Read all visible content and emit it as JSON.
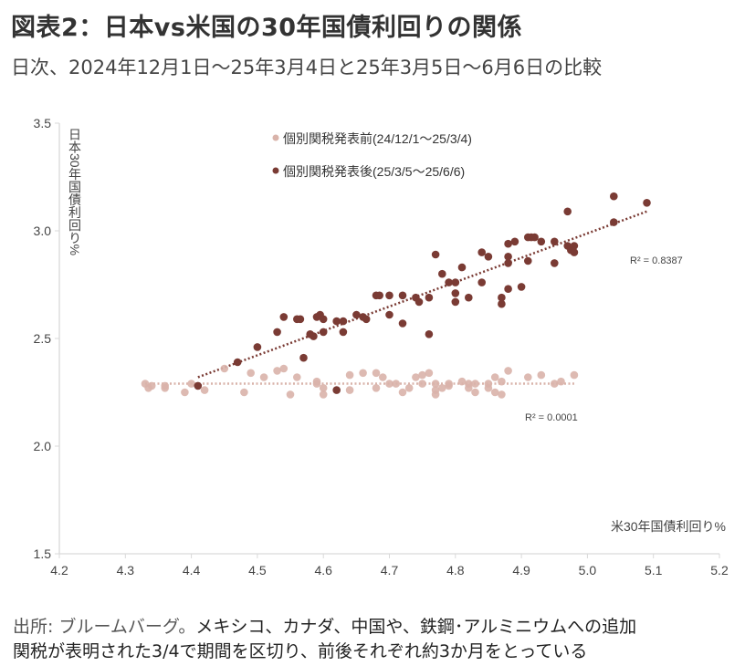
{
  "header": {
    "title": "図表2：日本vs米国の30年国債利回りの関係",
    "subtitle": "日次、2024年12月1日～25年3月4日と25年3月5日～6月6日の比較"
  },
  "footer": {
    "source_label": "出所: ブルームバーグ。",
    "line1_rest": "メキシコ、カナダ、中国や、鉄鋼･アルミニウムへの追加",
    "line2": "関税が表明された3/4で期間を区切り、前後それぞれ約3か月をとっている"
  },
  "chart_data": {
    "type": "scatter",
    "title": "図表2：日本vs米国の30年国債利回りの関係",
    "xlabel": "米30年国債利回り%",
    "ylabel": "日本30年国債利回り%",
    "xlim": [
      4.2,
      5.2
    ],
    "ylim": [
      1.5,
      3.5
    ],
    "xticks": [
      "4.2",
      "4.3",
      "4.4",
      "4.5",
      "4.6",
      "4.7",
      "4.8",
      "4.9",
      "5.0",
      "5.1",
      "5.2"
    ],
    "yticks": [
      "1.5",
      "2.0",
      "2.5",
      "3.0",
      "3.5"
    ],
    "grid": false,
    "legend_position": "top-center",
    "series": [
      {
        "name": "個別関税発表前(24/12/1～25/3/4)",
        "color": "#d9b3aa",
        "r_squared_label": "R² = 0.0001",
        "trendline": {
          "x": [
            4.33,
            4.98
          ],
          "y": [
            2.29,
            2.29
          ]
        },
        "points": [
          [
            4.33,
            2.29
          ],
          [
            4.335,
            2.27
          ],
          [
            4.34,
            2.28
          ],
          [
            4.36,
            2.28
          ],
          [
            4.36,
            2.27
          ],
          [
            4.39,
            2.25
          ],
          [
            4.4,
            2.29
          ],
          [
            4.42,
            2.26
          ],
          [
            4.45,
            2.36
          ],
          [
            4.48,
            2.25
          ],
          [
            4.49,
            2.34
          ],
          [
            4.51,
            2.32
          ],
          [
            4.53,
            2.35
          ],
          [
            4.54,
            2.36
          ],
          [
            4.55,
            2.24
          ],
          [
            4.56,
            2.32
          ],
          [
            4.59,
            2.3
          ],
          [
            4.59,
            2.29
          ],
          [
            4.6,
            2.27
          ],
          [
            4.6,
            2.24
          ],
          [
            4.64,
            2.33
          ],
          [
            4.64,
            2.26
          ],
          [
            4.66,
            2.34
          ],
          [
            4.68,
            2.34
          ],
          [
            4.68,
            2.27
          ],
          [
            4.69,
            2.32
          ],
          [
            4.7,
            2.29
          ],
          [
            4.71,
            2.29
          ],
          [
            4.72,
            2.25
          ],
          [
            4.73,
            2.27
          ],
          [
            4.74,
            2.32
          ],
          [
            4.75,
            2.33
          ],
          [
            4.75,
            2.29
          ],
          [
            4.76,
            2.34
          ],
          [
            4.77,
            2.29
          ],
          [
            4.77,
            2.26
          ],
          [
            4.77,
            2.24
          ],
          [
            4.78,
            2.27
          ],
          [
            4.79,
            2.28
          ],
          [
            4.79,
            2.29
          ],
          [
            4.81,
            2.3
          ],
          [
            4.82,
            2.27
          ],
          [
            4.82,
            2.29
          ],
          [
            4.83,
            2.25
          ],
          [
            4.83,
            2.29
          ],
          [
            4.85,
            2.29
          ],
          [
            4.86,
            2.32
          ],
          [
            4.85,
            2.27
          ],
          [
            4.86,
            2.25
          ],
          [
            4.87,
            2.3
          ],
          [
            4.87,
            2.24
          ],
          [
            4.88,
            2.35
          ],
          [
            4.91,
            2.32
          ],
          [
            4.93,
            2.33
          ],
          [
            4.95,
            2.29
          ],
          [
            4.96,
            2.3
          ],
          [
            4.98,
            2.33
          ]
        ]
      },
      {
        "name": "個別関税発表後(25/3/5～25/6/6)",
        "color": "#7a3b34",
        "r_squared_label": "R² = 0.8387",
        "trendline": {
          "x": [
            4.41,
            5.09
          ],
          "y": [
            2.32,
            3.09
          ]
        },
        "points": [
          [
            4.41,
            2.28
          ],
          [
            4.47,
            2.39
          ],
          [
            4.5,
            2.46
          ],
          [
            4.53,
            2.53
          ],
          [
            4.54,
            2.6
          ],
          [
            4.56,
            2.59
          ],
          [
            4.565,
            2.59
          ],
          [
            4.57,
            2.41
          ],
          [
            4.58,
            2.52
          ],
          [
            4.585,
            2.51
          ],
          [
            4.59,
            2.6
          ],
          [
            4.595,
            2.61
          ],
          [
            4.6,
            2.59
          ],
          [
            4.6,
            2.53
          ],
          [
            4.62,
            2.58
          ],
          [
            4.63,
            2.58
          ],
          [
            4.63,
            2.53
          ],
          [
            4.62,
            2.26
          ],
          [
            4.65,
            2.61
          ],
          [
            4.66,
            2.6
          ],
          [
            4.665,
            2.59
          ],
          [
            4.68,
            2.7
          ],
          [
            4.685,
            2.7
          ],
          [
            4.7,
            2.7
          ],
          [
            4.7,
            2.61
          ],
          [
            4.72,
            2.7
          ],
          [
            4.72,
            2.57
          ],
          [
            4.74,
            2.69
          ],
          [
            4.745,
            2.67
          ],
          [
            4.76,
            2.52
          ],
          [
            4.76,
            2.69
          ],
          [
            4.77,
            2.89
          ],
          [
            4.78,
            2.8
          ],
          [
            4.79,
            2.76
          ],
          [
            4.8,
            2.76
          ],
          [
            4.8,
            2.71
          ],
          [
            4.8,
            2.67
          ],
          [
            4.81,
            2.83
          ],
          [
            4.82,
            2.69
          ],
          [
            4.84,
            2.9
          ],
          [
            4.85,
            2.88
          ],
          [
            4.84,
            2.76
          ],
          [
            4.87,
            2.69
          ],
          [
            4.87,
            2.66
          ],
          [
            4.88,
            2.73
          ],
          [
            4.88,
            2.88
          ],
          [
            4.88,
            2.85
          ],
          [
            4.88,
            2.94
          ],
          [
            4.89,
            2.95
          ],
          [
            4.9,
            2.74
          ],
          [
            4.91,
            2.97
          ],
          [
            4.915,
            2.97
          ],
          [
            4.92,
            2.97
          ],
          [
            4.91,
            2.86
          ],
          [
            4.93,
            2.95
          ],
          [
            4.95,
            2.95
          ],
          [
            4.95,
            2.85
          ],
          [
            4.97,
            3.09
          ],
          [
            4.97,
            2.93
          ],
          [
            4.975,
            2.91
          ],
          [
            4.98,
            2.9
          ],
          [
            4.98,
            2.93
          ],
          [
            5.04,
            3.04
          ],
          [
            5.04,
            3.16
          ],
          [
            5.09,
            3.13
          ]
        ]
      }
    ]
  }
}
